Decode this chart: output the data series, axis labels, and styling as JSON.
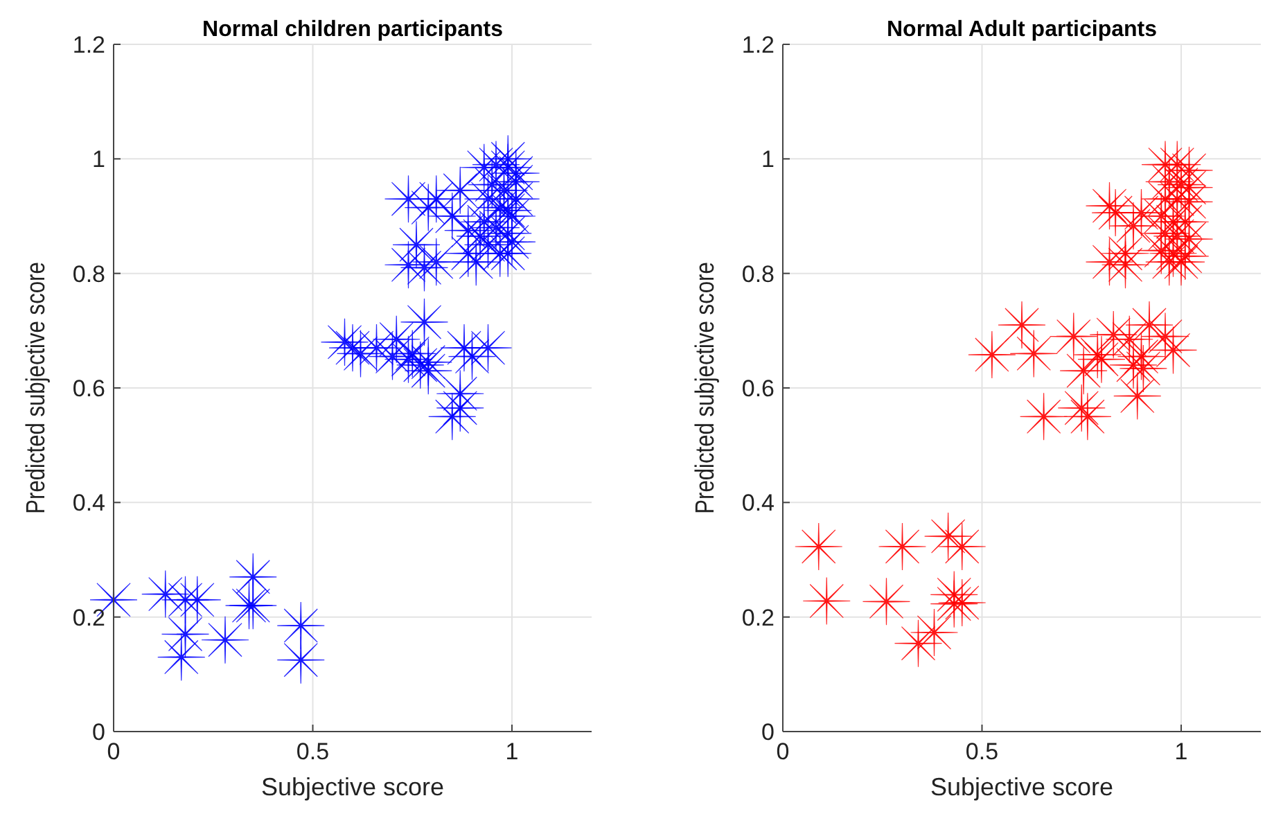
{
  "chart_data": [
    {
      "type": "scatter",
      "title": "Normal children participants",
      "xlabel": "Subjective score",
      "ylabel": "Predicted subjective score",
      "xlim": [
        0,
        1.2
      ],
      "ylim": [
        0,
        1.2
      ],
      "xticks": [
        0,
        0.5,
        1
      ],
      "yticks": [
        0,
        0.2,
        0.4,
        0.6,
        0.8,
        1,
        1.2
      ],
      "grid": true,
      "marker": "star",
      "series": [
        {
          "color": "#0000ff",
          "x": [
            0,
            0.13,
            0.18,
            0.21,
            0.18,
            0.17,
            0.28,
            0.35,
            0.34,
            0.35,
            0.47,
            0.47,
            0.58,
            0.6,
            0.62,
            0.66,
            0.71,
            0.7,
            0.74,
            0.75,
            0.77,
            0.79,
            0.78,
            0.79,
            0.88,
            0.9,
            0.94,
            0.87,
            0.87,
            0.85,
            0.74,
            0.76,
            0.74,
            0.78,
            0.81,
            0.79,
            0.81,
            0.85,
            0.87,
            0.89,
            0.89,
            0.91,
            0.93,
            0.96,
            0.99,
            1.01,
            0.95,
            0.98,
            1.01,
            0.94,
            0.97,
            0.99,
            1.0,
            0.93,
            0.96,
            0.99,
            1.0,
            0.94,
            0.97,
            0.99,
            0.92,
            1.01,
            0.99
          ],
          "values": [
            0.23,
            0.24,
            0.23,
            0.23,
            0.17,
            0.13,
            0.16,
            0.27,
            0.22,
            0.22,
            0.185,
            0.125,
            0.68,
            0.67,
            0.66,
            0.67,
            0.685,
            0.655,
            0.65,
            0.66,
            0.64,
            0.63,
            0.715,
            0.645,
            0.67,
            0.655,
            0.67,
            0.59,
            0.565,
            0.55,
            0.93,
            0.85,
            0.815,
            0.81,
            0.82,
            0.915,
            0.93,
            0.9,
            0.945,
            0.875,
            0.835,
            0.82,
            0.985,
            0.99,
            0.985,
            0.96,
            0.955,
            0.945,
            0.93,
            0.93,
            0.915,
            0.91,
            0.9,
            0.89,
            0.88,
            0.87,
            0.855,
            0.85,
            0.835,
            0.835,
            0.865,
            0.975,
            1.0
          ]
        }
      ]
    },
    {
      "type": "scatter",
      "title": "Normal Adult participants",
      "xlabel": "Subjective score",
      "ylabel": "Predicted subjective score",
      "xlim": [
        0,
        1.2
      ],
      "ylim": [
        0,
        1.2
      ],
      "xticks": [
        0,
        0.5,
        1
      ],
      "yticks": [
        0,
        0.2,
        0.4,
        0.6,
        0.8,
        1,
        1.2
      ],
      "grid": true,
      "marker": "star",
      "series": [
        {
          "color": "#ff0000",
          "x": [
            0.09,
            0.3,
            0.415,
            0.45,
            0.11,
            0.26,
            0.43,
            0.43,
            0.45,
            0.38,
            0.34,
            0.525,
            0.6,
            0.63,
            0.655,
            0.73,
            0.75,
            0.765,
            0.755,
            0.79,
            0.8,
            0.83,
            0.87,
            0.89,
            0.9,
            0.905,
            0.92,
            0.96,
            0.98,
            0.88,
            0.82,
            0.82,
            0.86,
            0.86,
            0.835,
            0.88,
            0.9,
            0.96,
            0.99,
            1.02,
            0.97,
            1.0,
            1.02,
            0.96,
            0.99,
            1.02,
            0.95,
            0.98,
            1.01,
            0.96,
            0.99,
            1.02,
            0.95,
            0.98,
            1.01,
            0.97,
            1.0
          ],
          "values": [
            0.323,
            0.323,
            0.341,
            0.323,
            0.228,
            0.227,
            0.239,
            0.223,
            0.225,
            0.173,
            0.154,
            0.658,
            0.71,
            0.66,
            0.55,
            0.69,
            0.565,
            0.55,
            0.63,
            0.658,
            0.65,
            0.693,
            0.685,
            0.586,
            0.655,
            0.634,
            0.71,
            0.69,
            0.666,
            0.64,
            0.918,
            0.82,
            0.815,
            0.835,
            0.906,
            0.883,
            0.906,
            0.99,
            0.99,
            0.98,
            0.96,
            0.955,
            0.95,
            0.93,
            0.93,
            0.925,
            0.9,
            0.89,
            0.89,
            0.87,
            0.865,
            0.86,
            0.84,
            0.835,
            0.83,
            0.82,
            0.82
          ]
        }
      ]
    }
  ]
}
